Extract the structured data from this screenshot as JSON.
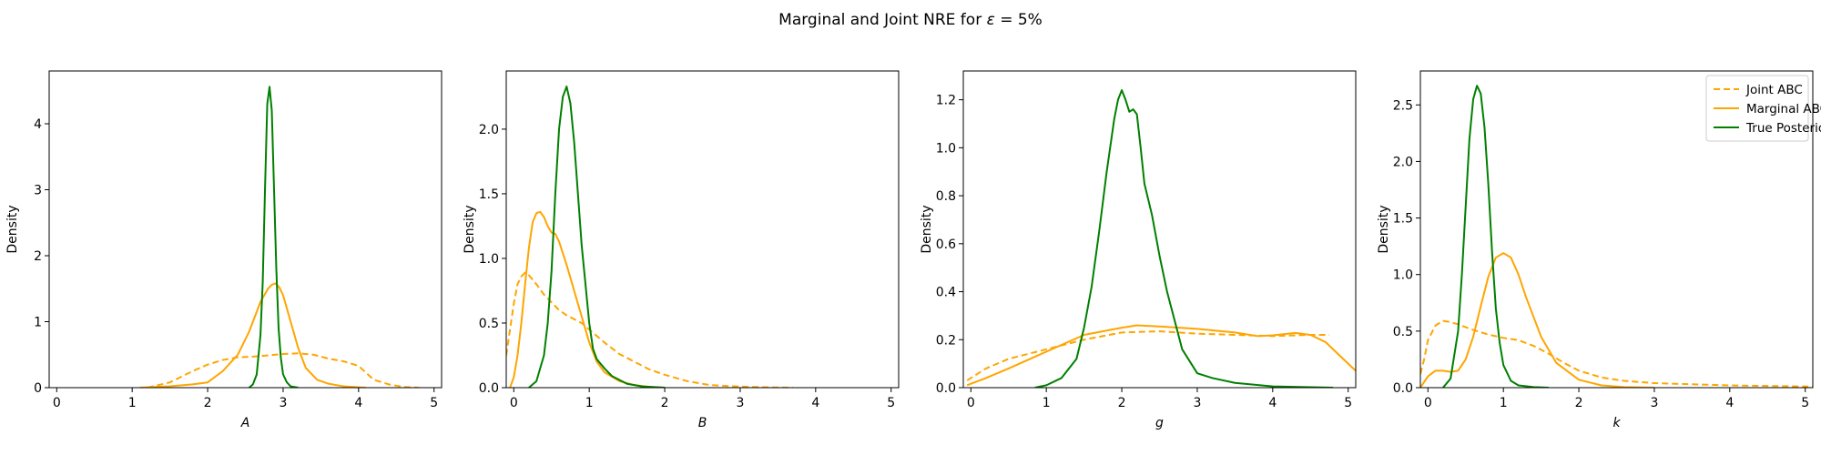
{
  "figure": {
    "title_main": "Marginal and Joint NRE for ",
    "title_epsilon": "ε",
    "title_tail": " =  5%"
  },
  "colors": {
    "joint_abc": "#ffa500",
    "marginal_abc": "#ffa500",
    "true_posterior": "#008000"
  },
  "chart_data": [
    {
      "type": "line",
      "xlabel": "A",
      "ylabel": "Density",
      "xlim": [
        -0.1,
        5.1
      ],
      "ylim": [
        0,
        4.8
      ],
      "xticks": [
        0,
        1,
        2,
        3,
        4,
        5
      ],
      "yticks": [
        0,
        1,
        2,
        3,
        4
      ],
      "series": [
        {
          "name": "Joint ABC",
          "style": "dashed",
          "color": "#ffa500",
          "x": [
            1.2,
            1.5,
            1.8,
            2.0,
            2.2,
            2.4,
            2.6,
            2.8,
            3.0,
            3.2,
            3.4,
            3.6,
            3.8,
            4.0,
            4.2,
            4.4,
            4.6,
            4.8
          ],
          "y": [
            0.0,
            0.08,
            0.25,
            0.35,
            0.42,
            0.46,
            0.47,
            0.49,
            0.51,
            0.52,
            0.5,
            0.44,
            0.4,
            0.33,
            0.12,
            0.05,
            0.01,
            0.0
          ]
        },
        {
          "name": "Marginal ABC",
          "style": "solid",
          "color": "#ffa500",
          "x": [
            1.1,
            1.5,
            1.8,
            2.0,
            2.2,
            2.4,
            2.55,
            2.7,
            2.8,
            2.85,
            2.9,
            2.95,
            3.0,
            3.1,
            3.2,
            3.3,
            3.45,
            3.6,
            3.8,
            4.0,
            4.1
          ],
          "y": [
            0.0,
            0.02,
            0.05,
            0.08,
            0.25,
            0.5,
            0.85,
            1.3,
            1.5,
            1.56,
            1.58,
            1.52,
            1.4,
            1.0,
            0.6,
            0.3,
            0.12,
            0.06,
            0.02,
            0.005,
            0.0
          ]
        },
        {
          "name": "True Posterior",
          "style": "solid",
          "color": "#008000",
          "x": [
            2.55,
            2.6,
            2.65,
            2.7,
            2.73,
            2.76,
            2.79,
            2.82,
            2.85,
            2.88,
            2.91,
            2.94,
            2.97,
            3.0,
            3.05,
            3.1,
            3.2
          ],
          "y": [
            0.0,
            0.05,
            0.2,
            0.8,
            1.6,
            3.0,
            4.3,
            4.56,
            4.2,
            3.0,
            1.8,
            0.9,
            0.45,
            0.2,
            0.08,
            0.02,
            0.0
          ]
        }
      ]
    },
    {
      "type": "line",
      "xlabel": "B",
      "ylabel": "Density",
      "xlim": [
        -0.1,
        5.1
      ],
      "ylim": [
        0,
        2.45
      ],
      "xticks": [
        0,
        1,
        2,
        3,
        4,
        5
      ],
      "yticks": [
        0.0,
        0.5,
        1.0,
        1.5,
        2.0
      ],
      "series": [
        {
          "name": "Joint ABC",
          "style": "dashed",
          "color": "#ffa500",
          "x": [
            -0.1,
            -0.05,
            0.0,
            0.05,
            0.1,
            0.15,
            0.2,
            0.3,
            0.4,
            0.5,
            0.6,
            0.7,
            0.8,
            0.9,
            1.0,
            1.2,
            1.4,
            1.6,
            1.8,
            2.0,
            2.3,
            2.6,
            3.0,
            3.4,
            3.7
          ],
          "y": [
            0.25,
            0.45,
            0.65,
            0.8,
            0.86,
            0.89,
            0.87,
            0.8,
            0.72,
            0.66,
            0.6,
            0.56,
            0.53,
            0.5,
            0.45,
            0.35,
            0.26,
            0.2,
            0.14,
            0.1,
            0.05,
            0.02,
            0.008,
            0.002,
            0.0
          ]
        },
        {
          "name": "Marginal ABC",
          "style": "solid",
          "color": "#ffa500",
          "x": [
            -0.05,
            0.0,
            0.05,
            0.1,
            0.15,
            0.2,
            0.25,
            0.3,
            0.35,
            0.4,
            0.45,
            0.5,
            0.55,
            0.6,
            0.7,
            0.8,
            0.9,
            1.0,
            1.1,
            1.2,
            1.4,
            1.6,
            1.8,
            2.0
          ],
          "y": [
            0.0,
            0.08,
            0.25,
            0.5,
            0.8,
            1.08,
            1.28,
            1.35,
            1.36,
            1.32,
            1.25,
            1.2,
            1.19,
            1.13,
            0.95,
            0.75,
            0.55,
            0.35,
            0.2,
            0.12,
            0.05,
            0.02,
            0.005,
            0.0
          ]
        },
        {
          "name": "True Posterior",
          "style": "solid",
          "color": "#008000",
          "x": [
            0.2,
            0.3,
            0.4,
            0.45,
            0.5,
            0.55,
            0.6,
            0.65,
            0.7,
            0.75,
            0.8,
            0.85,
            0.9,
            0.95,
            1.0,
            1.05,
            1.1,
            1.2,
            1.3,
            1.4,
            1.5,
            1.7,
            2.0
          ],
          "y": [
            0.0,
            0.05,
            0.25,
            0.5,
            0.9,
            1.5,
            2.0,
            2.25,
            2.33,
            2.2,
            1.9,
            1.5,
            1.1,
            0.8,
            0.5,
            0.3,
            0.22,
            0.15,
            0.09,
            0.06,
            0.03,
            0.01,
            0.0
          ]
        }
      ]
    },
    {
      "type": "line",
      "xlabel": "g",
      "ylabel": "Density",
      "xlim": [
        -0.1,
        5.1
      ],
      "ylim": [
        0,
        1.32
      ],
      "xticks": [
        0,
        1,
        2,
        3,
        4,
        5
      ],
      "yticks": [
        0.0,
        0.2,
        0.4,
        0.6,
        0.8,
        1.0,
        1.2
      ],
      "series": [
        {
          "name": "Joint ABC",
          "style": "dashed",
          "color": "#ffa500",
          "x": [
            -0.05,
            0.2,
            0.5,
            1.0,
            1.5,
            2.0,
            2.5,
            3.0,
            3.5,
            4.0,
            4.5,
            4.75
          ],
          "y": [
            0.03,
            0.08,
            0.12,
            0.16,
            0.2,
            0.23,
            0.235,
            0.225,
            0.22,
            0.215,
            0.22,
            0.22
          ]
        },
        {
          "name": "Marginal ABC",
          "style": "solid",
          "color": "#ffa500",
          "x": [
            -0.05,
            0.2,
            0.5,
            1.0,
            1.5,
            2.0,
            2.2,
            2.5,
            3.0,
            3.5,
            3.8,
            4.0,
            4.3,
            4.5,
            4.7,
            4.9,
            5.1
          ],
          "y": [
            0.01,
            0.04,
            0.08,
            0.15,
            0.22,
            0.25,
            0.26,
            0.255,
            0.245,
            0.23,
            0.215,
            0.218,
            0.228,
            0.22,
            0.19,
            0.13,
            0.07
          ]
        },
        {
          "name": "True Posterior",
          "style": "solid",
          "color": "#008000",
          "x": [
            0.85,
            1.0,
            1.2,
            1.4,
            1.5,
            1.6,
            1.7,
            1.8,
            1.9,
            1.95,
            2.0,
            2.05,
            2.1,
            2.15,
            2.2,
            2.25,
            2.3,
            2.4,
            2.5,
            2.6,
            2.7,
            2.8,
            3.0,
            3.2,
            3.5,
            4.0,
            4.8
          ],
          "y": [
            0.0,
            0.01,
            0.04,
            0.12,
            0.25,
            0.42,
            0.65,
            0.9,
            1.12,
            1.2,
            1.24,
            1.2,
            1.15,
            1.16,
            1.14,
            1.0,
            0.85,
            0.72,
            0.55,
            0.4,
            0.28,
            0.16,
            0.06,
            0.04,
            0.02,
            0.005,
            0.0
          ]
        }
      ]
    },
    {
      "type": "line",
      "xlabel": "k",
      "ylabel": "Density",
      "xlim": [
        -0.1,
        5.1
      ],
      "ylim": [
        0,
        2.8
      ],
      "xticks": [
        0,
        1,
        2,
        3,
        4,
        5
      ],
      "yticks": [
        0.0,
        0.5,
        1.0,
        1.5,
        2.0,
        2.5
      ],
      "series": [
        {
          "name": "Joint ABC",
          "style": "dashed",
          "color": "#ffa500",
          "x": [
            -0.1,
            -0.05,
            0.0,
            0.1,
            0.2,
            0.3,
            0.4,
            0.6,
            0.8,
            1.0,
            1.2,
            1.4,
            1.6,
            1.8,
            2.0,
            2.3,
            2.6,
            3.0,
            3.5,
            4.0,
            4.5,
            5.1
          ],
          "y": [
            0.12,
            0.25,
            0.42,
            0.55,
            0.59,
            0.58,
            0.56,
            0.51,
            0.47,
            0.44,
            0.42,
            0.37,
            0.3,
            0.22,
            0.15,
            0.09,
            0.06,
            0.04,
            0.03,
            0.02,
            0.015,
            0.01
          ]
        },
        {
          "name": "Marginal ABC",
          "style": "solid",
          "color": "#ffa500",
          "x": [
            -0.1,
            -0.05,
            0.0,
            0.1,
            0.2,
            0.3,
            0.4,
            0.5,
            0.6,
            0.7,
            0.8,
            0.9,
            1.0,
            1.1,
            1.2,
            1.3,
            1.5,
            1.7,
            2.0,
            2.3,
            2.6,
            3.0
          ],
          "y": [
            0.0,
            0.05,
            0.1,
            0.15,
            0.15,
            0.14,
            0.15,
            0.25,
            0.45,
            0.72,
            0.98,
            1.15,
            1.19,
            1.15,
            1.0,
            0.8,
            0.45,
            0.22,
            0.07,
            0.02,
            0.005,
            0.0
          ]
        },
        {
          "name": "True Posterior",
          "style": "solid",
          "color": "#008000",
          "x": [
            0.2,
            0.3,
            0.4,
            0.45,
            0.5,
            0.55,
            0.6,
            0.65,
            0.7,
            0.75,
            0.8,
            0.85,
            0.9,
            0.95,
            1.0,
            1.1,
            1.2,
            1.4,
            1.6
          ],
          "y": [
            0.0,
            0.08,
            0.5,
            1.0,
            1.6,
            2.2,
            2.55,
            2.67,
            2.6,
            2.3,
            1.8,
            1.2,
            0.7,
            0.4,
            0.2,
            0.06,
            0.02,
            0.005,
            0.0
          ]
        }
      ]
    }
  ],
  "legend": {
    "placement": "upper-right of last panel",
    "items": [
      {
        "label": "Joint ABC",
        "style": "dashed",
        "color": "#ffa500"
      },
      {
        "label": "Marginal ABC",
        "style": "solid",
        "color": "#ffa500"
      },
      {
        "label": "True Posterior",
        "style": "solid",
        "color": "#008000"
      }
    ]
  }
}
